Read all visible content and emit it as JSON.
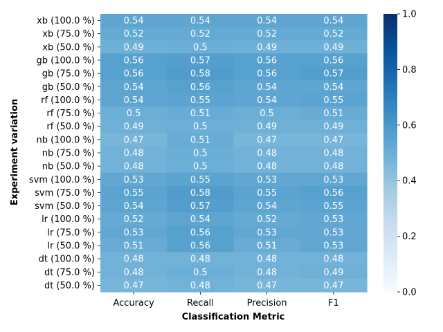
{
  "chart_data": {
    "type": "heatmap",
    "xlabel": "Classification Metric",
    "ylabel": "Experiment variation",
    "columns": [
      "Accuracy",
      "Recall",
      "Precision",
      "F1"
    ],
    "rows": [
      "xb (100.0 %)",
      "xb (75.0 %)",
      "xb (50.0 %)",
      "gb (100.0 %)",
      "gb (75.0 %)",
      "gb (50.0 %)",
      "rf (100.0 %)",
      "rf (75.0 %)",
      "rf (50.0 %)",
      "nb (100.0 %)",
      "nb (75.0 %)",
      "nb (50.0 %)",
      "svm (100.0 %)",
      "svm (75.0 %)",
      "svm (50.0 %)",
      "lr (100.0 %)",
      "lr (75.0 %)",
      "lr (50.0 %)",
      "dt (100.0 %)",
      "dt (75.0 %)",
      "dt (50.0 %)"
    ],
    "values": [
      [
        0.54,
        0.54,
        0.54,
        0.54
      ],
      [
        0.52,
        0.52,
        0.52,
        0.52
      ],
      [
        0.49,
        0.5,
        0.49,
        0.49
      ],
      [
        0.56,
        0.57,
        0.56,
        0.56
      ],
      [
        0.56,
        0.58,
        0.56,
        0.57
      ],
      [
        0.54,
        0.56,
        0.54,
        0.54
      ],
      [
        0.54,
        0.55,
        0.54,
        0.55
      ],
      [
        0.5,
        0.51,
        0.5,
        0.51
      ],
      [
        0.49,
        0.5,
        0.49,
        0.49
      ],
      [
        0.47,
        0.51,
        0.47,
        0.47
      ],
      [
        0.48,
        0.5,
        0.48,
        0.48
      ],
      [
        0.48,
        0.5,
        0.48,
        0.48
      ],
      [
        0.53,
        0.55,
        0.53,
        0.53
      ],
      [
        0.55,
        0.58,
        0.55,
        0.56
      ],
      [
        0.54,
        0.57,
        0.54,
        0.55
      ],
      [
        0.52,
        0.54,
        0.52,
        0.53
      ],
      [
        0.53,
        0.56,
        0.53,
        0.53
      ],
      [
        0.51,
        0.56,
        0.51,
        0.53
      ],
      [
        0.48,
        0.48,
        0.48,
        0.48
      ],
      [
        0.48,
        0.5,
        0.48,
        0.49
      ],
      [
        0.47,
        0.48,
        0.47,
        0.47
      ]
    ],
    "colorbar": {
      "range": [
        0.0,
        1.0
      ],
      "ticks": [
        "0.0",
        "0.2",
        "0.4",
        "0.6",
        "0.8",
        "1.0"
      ],
      "colormap": "Blues"
    },
    "text_colors": {
      "dark_cell": "#ffffff",
      "light_cell": "#262626"
    }
  }
}
